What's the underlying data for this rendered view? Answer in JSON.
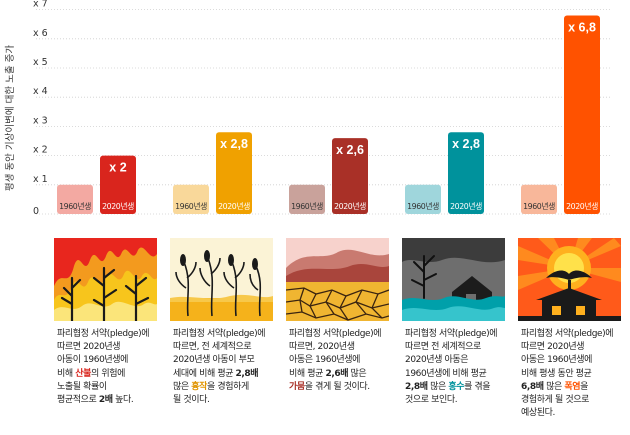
{
  "chart_data": {
    "type": "bar",
    "ylabel": "평생 동안 기상이변에 대한 노출 증가",
    "yticks": [
      "0",
      "x 1",
      "x 2",
      "x 3",
      "x 4",
      "x 5",
      "x 6",
      "x 7"
    ],
    "ylim": [
      0,
      7
    ],
    "grid": true,
    "categories": [
      "산불",
      "흉작",
      "가뭄",
      "홍수",
      "폭염"
    ],
    "series": [
      {
        "name": "1960년생",
        "values": [
          1,
          1,
          1,
          1,
          1
        ]
      },
      {
        "name": "2020년생",
        "values": [
          2,
          2.8,
          2.6,
          2.8,
          6.8
        ]
      }
    ],
    "data_labels": [
      "x 2",
      "x 2,8",
      "x 2,6",
      "x 2,8",
      "x 6,8"
    ],
    "colors_1960": [
      "#f3a9a2",
      "#f9d89a",
      "#c9a29b",
      "#9fd6dc",
      "#f8b79a"
    ],
    "colors_2020": [
      "#d9251d",
      "#f0a100",
      "#a93027",
      "#00929c",
      "#ff5200"
    ]
  },
  "descriptions": [
    [
      [
        {
          "t": "파리협정 서약(pledge)에"
        }
      ],
      [
        {
          "t": "따르면 2020년생"
        }
      ],
      [
        {
          "t": "아동이 1960년생에"
        }
      ],
      [
        {
          "t": "비해 "
        },
        {
          "t": "산불",
          "c": "#d9251d",
          "b": true
        },
        {
          "t": "의 위험에"
        }
      ],
      [
        {
          "t": "노출될 확률이"
        }
      ],
      [
        {
          "t": "평균적으로 "
        },
        {
          "t": "2배",
          "b": true
        },
        {
          "t": " 높다."
        }
      ]
    ],
    [
      [
        {
          "t": "파리협정 서약(pledge)에"
        }
      ],
      [
        {
          "t": "따르면, 전 세계적으로"
        }
      ],
      [
        {
          "t": "2020년생 아동이 부모"
        }
      ],
      [
        {
          "t": "세대에 비해 평균 "
        },
        {
          "t": "2,8배",
          "b": true
        }
      ],
      [
        {
          "t": "많은 "
        },
        {
          "t": "흉작",
          "c": "#e09400",
          "b": true
        },
        {
          "t": "을 경험하게"
        }
      ],
      [
        {
          "t": "될 것이다."
        }
      ]
    ],
    [
      [
        {
          "t": "파리협정 서약(pledge)에"
        }
      ],
      [
        {
          "t": "따르면, 2020년생"
        }
      ],
      [
        {
          "t": "아동은 1960년생에"
        }
      ],
      [
        {
          "t": "비해 평균 "
        },
        {
          "t": "2,6배",
          "b": true
        },
        {
          "t": " 많은"
        }
      ],
      [
        {
          "t": "가뭄",
          "c": "#a93027",
          "b": true
        },
        {
          "t": "을 겪게 될 것이다."
        }
      ]
    ],
    [
      [
        {
          "t": "파리협정 서약(pledge)에"
        }
      ],
      [
        {
          "t": "따르면 전 세계적으로"
        }
      ],
      [
        {
          "t": "2020년생 아동은"
        }
      ],
      [
        {
          "t": "1960년생에 비해 평균"
        }
      ],
      [
        {
          "t": "2,8배",
          "b": true
        },
        {
          "t": " 많은 "
        },
        {
          "t": "홍수",
          "c": "#00929c",
          "b": true
        },
        {
          "t": "를 겪을"
        }
      ],
      [
        {
          "t": "것으로 보인다."
        }
      ]
    ],
    [
      [
        {
          "t": "파리협정 서약(pledge)에"
        }
      ],
      [
        {
          "t": "따르면 2020년생"
        }
      ],
      [
        {
          "t": "아동은 1960년생에"
        }
      ],
      [
        {
          "t": "비해 평생 동안 평균"
        }
      ],
      [
        {
          "t": "6,8배",
          "b": true
        },
        {
          "t": " 많은 "
        },
        {
          "t": "폭염",
          "c": "#ff5200",
          "b": true
        },
        {
          "t": "을"
        }
      ],
      [
        {
          "t": "경험하게 될 것으로"
        }
      ],
      [
        {
          "t": "예상된다."
        }
      ]
    ]
  ]
}
